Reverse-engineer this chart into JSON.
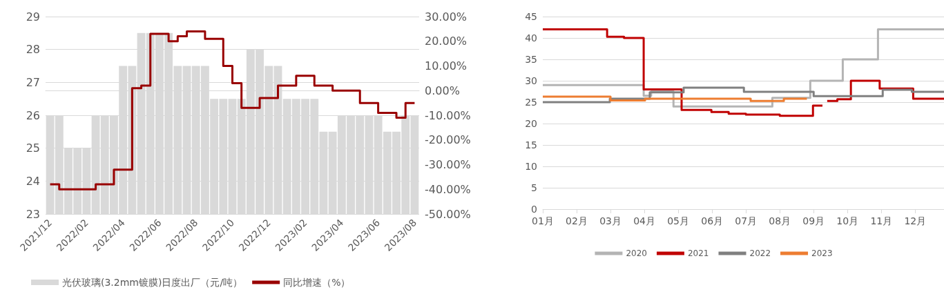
{
  "chart_data": [
    {
      "type": "bar",
      "categories": [
        "2021/12",
        null,
        null,
        null,
        "2022/02",
        null,
        null,
        null,
        "2022/04",
        null,
        null,
        null,
        "2022/06",
        null,
        null,
        null,
        "2022/08",
        null,
        null,
        null,
        "2022/10",
        null,
        null,
        null,
        "2022/12",
        null,
        null,
        null,
        "2023/02",
        null,
        null,
        null,
        "2023/04",
        null,
        null,
        null,
        "2023/06",
        null,
        null,
        null,
        "2023/08"
      ],
      "series": [
        {
          "name": "光伏玻璃(3.2mm镀膜)日度出厂（元/吨）",
          "color": "#d9d9d9",
          "values": [
            26,
            26,
            25,
            25,
            25,
            26,
            26,
            26,
            27.5,
            27.5,
            28.5,
            28.5,
            28.5,
            28.5,
            27.5,
            27.5,
            27.5,
            27.5,
            26.5,
            26.5,
            26.5,
            26.5,
            28,
            28,
            27.5,
            27.5,
            26.5,
            26.5,
            26.5,
            26.5,
            25.5,
            25.5,
            26,
            26,
            26,
            26,
            26,
            25.5,
            25.5,
            26,
            26
          ]
        },
        {
          "name": "同比增速（%）",
          "type": "step",
          "axis": "y2",
          "color": "#990000",
          "values": [
            -38,
            -40,
            -40,
            -40,
            -40,
            -38,
            -38,
            -32,
            -32,
            1,
            2,
            23,
            23,
            20,
            22,
            24,
            24,
            21,
            21,
            10,
            3,
            -7,
            -7,
            -3,
            -3,
            2,
            2,
            6,
            6,
            2,
            2,
            0,
            0,
            0,
            -5,
            -5,
            -9,
            -9,
            -11,
            -5,
            -5
          ]
        }
      ],
      "ylim": [
        23,
        29
      ],
      "yticks": [
        23,
        24,
        25,
        26,
        27,
        28,
        29
      ],
      "y2lim": [
        -50,
        30
      ],
      "y2ticks": [
        {
          "value": -50,
          "label": "-50.00%"
        },
        {
          "value": -40,
          "label": "-40.00%"
        },
        {
          "value": -30,
          "label": "-30.00%"
        },
        {
          "value": -20,
          "label": "-20.00%"
        },
        {
          "value": -10,
          "label": "-10.00%"
        },
        {
          "value": 0,
          "label": "0.00%"
        },
        {
          "value": 10,
          "label": "10.00%"
        },
        {
          "value": 20,
          "label": "20.00%"
        },
        {
          "value": 30,
          "label": "30.00%"
        }
      ],
      "grid": "y",
      "legend": "bottom",
      "marker": "none"
    },
    {
      "type": "step",
      "series": [
        {
          "name": "2020",
          "color": "#b4b4b4",
          "x": [
            1,
            3.98,
            4.2,
            4.86,
            7.78,
            8.9,
            9.86,
            10.9,
            12.85
          ],
          "values": [
            29,
            26.5,
            27.5,
            24,
            26,
            30,
            35,
            42,
            42
          ]
        },
        {
          "name": "2021",
          "color": "#c00000",
          "x": [
            1,
            2.9,
            3.4,
            3.98,
            5.1,
            5.98,
            6.49,
            7.0,
            8.0,
            8.98,
            9.22,
            9.26,
            9.4,
            9.7,
            10.1,
            10.95,
            11.94,
            12.85
          ],
          "values": [
            42,
            40.3,
            40,
            28,
            23.2,
            22.7,
            22.3,
            22.1,
            21.8,
            24.2,
            24.2,
            null,
            25.3,
            25.7,
            30,
            28.2,
            25.8,
            25.8
          ]
        },
        {
          "name": "2022",
          "color": "#808080",
          "x": [
            1,
            2.98,
            4.16,
            5.16,
            6.94,
            9.0,
            11.04,
            11.9,
            12.85
          ],
          "values": [
            25,
            25.8,
            27.3,
            28.4,
            27.4,
            26.4,
            27.9,
            27.4,
            27.4
          ]
        },
        {
          "name": "2023",
          "color": "#ed7d31",
          "x": [
            1,
            3.0,
            4.02,
            7.14,
            8.12,
            8.8
          ],
          "values": [
            26.3,
            25.4,
            25.8,
            25.3,
            25.8,
            25.8
          ]
        }
      ],
      "xlim": [
        1,
        12.85
      ],
      "xticks": [
        {
          "value": 1,
          "label": "01月"
        },
        {
          "value": 2,
          "label": "02月"
        },
        {
          "value": 3,
          "label": "03月"
        },
        {
          "value": 4,
          "label": "04月"
        },
        {
          "value": 5,
          "label": "05月"
        },
        {
          "value": 6,
          "label": "06月"
        },
        {
          "value": 7,
          "label": "07月"
        },
        {
          "value": 8,
          "label": "08月"
        },
        {
          "value": 9,
          "label": "09月"
        },
        {
          "value": 10,
          "label": "10月"
        },
        {
          "value": 11,
          "label": "11月"
        },
        {
          "value": 12,
          "label": "12月"
        }
      ],
      "ylim": [
        0,
        45
      ],
      "yticks": [
        0,
        5,
        10,
        15,
        20,
        25,
        30,
        35,
        40,
        45
      ],
      "grid": "y",
      "legend": "bottom",
      "marker": "none"
    }
  ]
}
